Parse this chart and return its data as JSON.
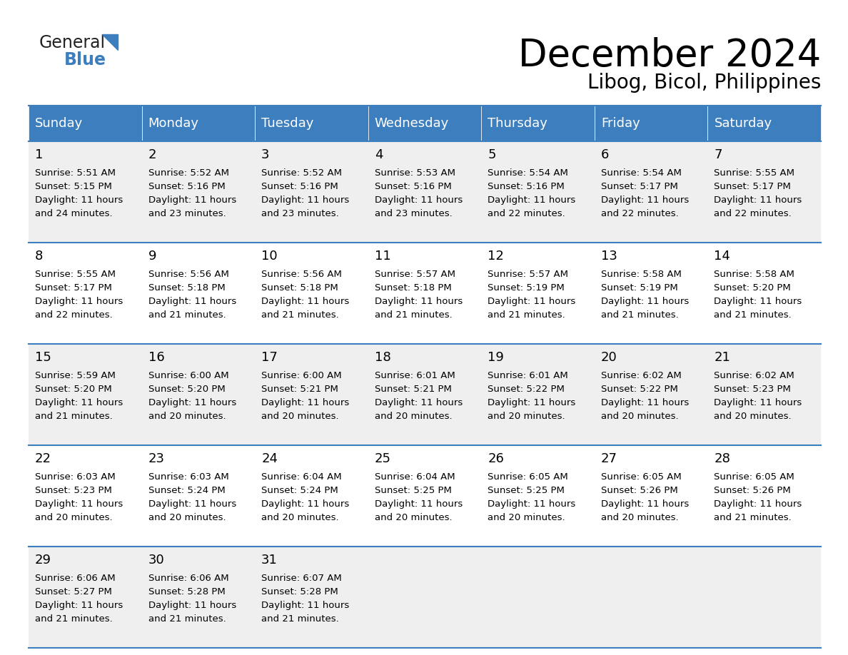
{
  "title": "December 2024",
  "subtitle": "Libog, Bicol, Philippines",
  "header_color": "#3d7ebf",
  "header_text_color": "#FFFFFF",
  "cell_bg_even": "#EFEFEF",
  "cell_bg_odd": "#FFFFFF",
  "border_color": "#3d7ebf",
  "text_color": "#000000",
  "days_of_week": [
    "Sunday",
    "Monday",
    "Tuesday",
    "Wednesday",
    "Thursday",
    "Friday",
    "Saturday"
  ],
  "calendar_data": [
    [
      {
        "day": "1",
        "sunrise": "5:51 AM",
        "sunset": "5:15 PM",
        "daylight_min": "24"
      },
      {
        "day": "2",
        "sunrise": "5:52 AM",
        "sunset": "5:16 PM",
        "daylight_min": "23"
      },
      {
        "day": "3",
        "sunrise": "5:52 AM",
        "sunset": "5:16 PM",
        "daylight_min": "23"
      },
      {
        "day": "4",
        "sunrise": "5:53 AM",
        "sunset": "5:16 PM",
        "daylight_min": "23"
      },
      {
        "day": "5",
        "sunrise": "5:54 AM",
        "sunset": "5:16 PM",
        "daylight_min": "22"
      },
      {
        "day": "6",
        "sunrise": "5:54 AM",
        "sunset": "5:17 PM",
        "daylight_min": "22"
      },
      {
        "day": "7",
        "sunrise": "5:55 AM",
        "sunset": "5:17 PM",
        "daylight_min": "22"
      }
    ],
    [
      {
        "day": "8",
        "sunrise": "5:55 AM",
        "sunset": "5:17 PM",
        "daylight_min": "22"
      },
      {
        "day": "9",
        "sunrise": "5:56 AM",
        "sunset": "5:18 PM",
        "daylight_min": "21"
      },
      {
        "day": "10",
        "sunrise": "5:56 AM",
        "sunset": "5:18 PM",
        "daylight_min": "21"
      },
      {
        "day": "11",
        "sunrise": "5:57 AM",
        "sunset": "5:18 PM",
        "daylight_min": "21"
      },
      {
        "day": "12",
        "sunrise": "5:57 AM",
        "sunset": "5:19 PM",
        "daylight_min": "21"
      },
      {
        "day": "13",
        "sunrise": "5:58 AM",
        "sunset": "5:19 PM",
        "daylight_min": "21"
      },
      {
        "day": "14",
        "sunrise": "5:58 AM",
        "sunset": "5:20 PM",
        "daylight_min": "21"
      }
    ],
    [
      {
        "day": "15",
        "sunrise": "5:59 AM",
        "sunset": "5:20 PM",
        "daylight_min": "21"
      },
      {
        "day": "16",
        "sunrise": "6:00 AM",
        "sunset": "5:20 PM",
        "daylight_min": "20"
      },
      {
        "day": "17",
        "sunrise": "6:00 AM",
        "sunset": "5:21 PM",
        "daylight_min": "20"
      },
      {
        "day": "18",
        "sunrise": "6:01 AM",
        "sunset": "5:21 PM",
        "daylight_min": "20"
      },
      {
        "day": "19",
        "sunrise": "6:01 AM",
        "sunset": "5:22 PM",
        "daylight_min": "20"
      },
      {
        "day": "20",
        "sunrise": "6:02 AM",
        "sunset": "5:22 PM",
        "daylight_min": "20"
      },
      {
        "day": "21",
        "sunrise": "6:02 AM",
        "sunset": "5:23 PM",
        "daylight_min": "20"
      }
    ],
    [
      {
        "day": "22",
        "sunrise": "6:03 AM",
        "sunset": "5:23 PM",
        "daylight_min": "20"
      },
      {
        "day": "23",
        "sunrise": "6:03 AM",
        "sunset": "5:24 PM",
        "daylight_min": "20"
      },
      {
        "day": "24",
        "sunrise": "6:04 AM",
        "sunset": "5:24 PM",
        "daylight_min": "20"
      },
      {
        "day": "25",
        "sunrise": "6:04 AM",
        "sunset": "5:25 PM",
        "daylight_min": "20"
      },
      {
        "day": "26",
        "sunrise": "6:05 AM",
        "sunset": "5:25 PM",
        "daylight_min": "20"
      },
      {
        "day": "27",
        "sunrise": "6:05 AM",
        "sunset": "5:26 PM",
        "daylight_min": "20"
      },
      {
        "day": "28",
        "sunrise": "6:05 AM",
        "sunset": "5:26 PM",
        "daylight_min": "21"
      }
    ],
    [
      {
        "day": "29",
        "sunrise": "6:06 AM",
        "sunset": "5:27 PM",
        "daylight_min": "21"
      },
      {
        "day": "30",
        "sunrise": "6:06 AM",
        "sunset": "5:28 PM",
        "daylight_min": "21"
      },
      {
        "day": "31",
        "sunrise": "6:07 AM",
        "sunset": "5:28 PM",
        "daylight_min": "21"
      },
      null,
      null,
      null,
      null
    ]
  ],
  "logo_color_general": "#222222",
  "logo_color_blue": "#3d7ebf",
  "title_fontsize": 38,
  "subtitle_fontsize": 20,
  "header_fontsize": 13,
  "day_num_fontsize": 13,
  "cell_text_fontsize": 9.5
}
